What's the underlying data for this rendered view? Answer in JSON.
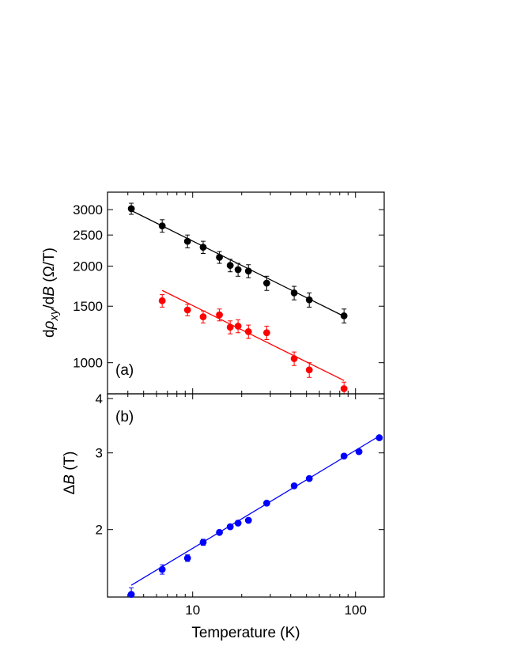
{
  "chart_data": [
    {
      "panel": "(a)",
      "type": "scatter",
      "xscale": "log",
      "yscale": "log",
      "xlim": [
        3.0,
        150
      ],
      "ylim": [
        800,
        3400
      ],
      "yticks": [
        1000,
        1500,
        2000,
        2500,
        3000
      ],
      "ylabel_parts": [
        "d",
        "ρ",
        "xy",
        "/d",
        "B",
        " (Ω/T)"
      ],
      "series": [
        {
          "color": "#000000",
          "x": [
            4.2,
            6.5,
            9.3,
            11.6,
            14.6,
            17.0,
            19.0,
            22.0,
            28.5,
            42.0,
            52.0,
            85.0
          ],
          "y": [
            3020,
            2670,
            2390,
            2290,
            2130,
            2010,
            1950,
            1930,
            1770,
            1650,
            1570,
            1400
          ],
          "yerr": [
            120,
            120,
            110,
            100,
            90,
            90,
            90,
            90,
            90,
            80,
            80,
            70
          ],
          "fit": {
            "x": [
              4.2,
              85.0
            ],
            "y": [
              2980,
              1395
            ]
          }
        },
        {
          "color": "#ff0000",
          "x": [
            6.5,
            9.3,
            11.6,
            14.6,
            17.0,
            19.0,
            22.0,
            28.5,
            42.0,
            52.0,
            85.0
          ],
          "y": [
            1560,
            1460,
            1390,
            1410,
            1290,
            1300,
            1250,
            1240,
            1030,
            950,
            830
          ],
          "yerr": [
            70,
            60,
            60,
            60,
            60,
            60,
            60,
            60,
            50,
            50,
            40
          ],
          "fit": {
            "x": [
              6.5,
              85.0
            ],
            "y": [
              1680,
              880
            ]
          }
        }
      ]
    },
    {
      "panel": "(b)",
      "type": "scatter",
      "xscale": "log",
      "yscale": "log",
      "xlim": [
        3.0,
        150
      ],
      "ylim": [
        1.4,
        4.1
      ],
      "xticks": [
        10,
        100
      ],
      "yticks": [
        2,
        3,
        4
      ],
      "xlabel": "Temperature (K)",
      "ylabel_parts": [
        "Δ",
        "B",
        " (T)"
      ],
      "series": [
        {
          "color": "#0000ff",
          "x": [
            4.2,
            6.5,
            9.3,
            11.6,
            14.6,
            17.0,
            19.0,
            22.0,
            28.5,
            42.0,
            52.0,
            85.0,
            105.0,
            140.0
          ],
          "y": [
            1.42,
            1.62,
            1.72,
            1.87,
            1.97,
            2.03,
            2.07,
            2.1,
            2.3,
            2.52,
            2.62,
            2.95,
            3.02,
            3.25
          ],
          "yerr": [
            0.05,
            0.04,
            0.03,
            0.03,
            0.02,
            0.02,
            0.02,
            0.02,
            0.02,
            0.02,
            0.02,
            0.02,
            0.02,
            0.02
          ],
          "fit": {
            "x": [
              4.2,
              140.0
            ],
            "y": [
              1.49,
              3.28
            ]
          }
        }
      ]
    }
  ]
}
